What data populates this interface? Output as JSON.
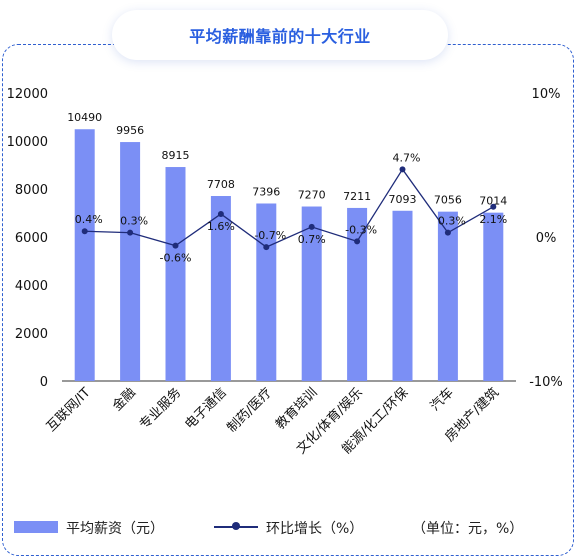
{
  "title": "平均薪酬靠前的十大行业",
  "chart_data": {
    "type": "bar",
    "categories": [
      "互联网/IT",
      "金融",
      "专业服务",
      "电子通信",
      "制药/医疗",
      "教育培训",
      "文化/体育/娱乐",
      "能源/化工/环保",
      "汽车",
      "房地产/建筑"
    ],
    "series": [
      {
        "name": "平均薪资（元）",
        "type": "bar",
        "axis": "left",
        "values": [
          10490,
          9956,
          8915,
          7708,
          7396,
          7270,
          7211,
          7093,
          7056,
          7014
        ],
        "labels": [
          "10490",
          "9956",
          "8915",
          "7708",
          "7396",
          "7270",
          "7211",
          "7093",
          "7056",
          "7014"
        ],
        "color": "#7b8ff5"
      },
      {
        "name": "环比增长（%）",
        "type": "line",
        "axis": "right",
        "values": [
          0.4,
          0.3,
          -0.6,
          1.6,
          -0.7,
          0.7,
          -0.3,
          4.7,
          0.3,
          2.1
        ],
        "labels": [
          "0.4%",
          "0.3%",
          "-0.6%",
          "1.6%",
          "-0.7%",
          "0.7%",
          "-0.3%",
          "4.7%",
          "0.3%",
          "2.1%"
        ],
        "color": "#1f2c7a"
      }
    ],
    "y_left": {
      "ylim": [
        0,
        12000
      ],
      "ticks": [
        "0",
        "2000",
        "4000",
        "6000",
        "8000",
        "10000",
        "12000"
      ]
    },
    "y_right": {
      "ylim": [
        -10,
        10
      ],
      "ticks": [
        "-10%",
        "0%",
        "10%"
      ]
    },
    "grid": false,
    "legend": "bottom"
  },
  "legend": {
    "bar_label": "平均薪资（元）",
    "line_label": "环比增长（%）",
    "unit_note": "（单位：元，%）"
  }
}
